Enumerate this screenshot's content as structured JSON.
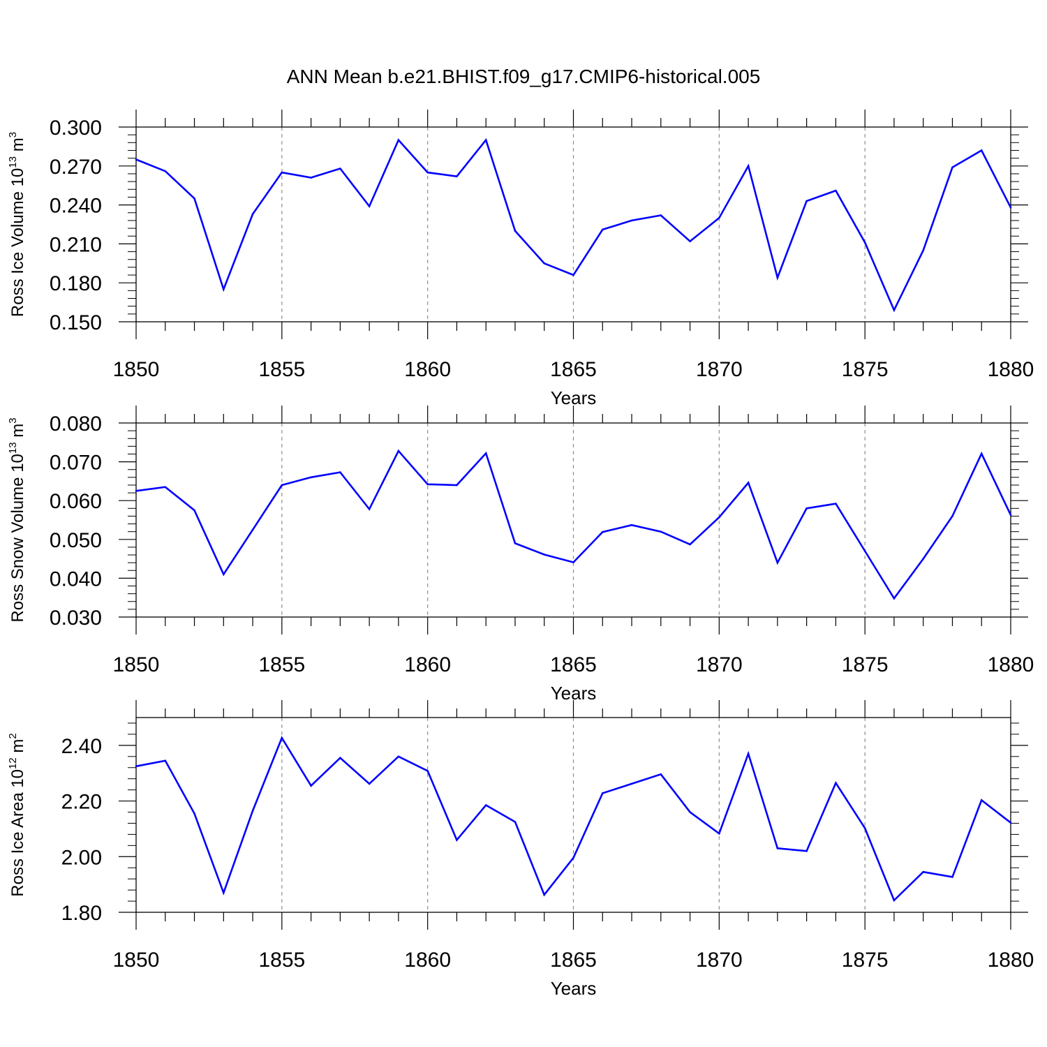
{
  "title": "ANN Mean b.e21.BHIST.f09_g17.CMIP6-historical.005",
  "colors": {
    "line": "#0000ff",
    "axis": "#000000",
    "grid": "#8c8c8c"
  },
  "chart_data": [
    {
      "type": "line",
      "ylabel": {
        "text": "Ross Ice Volume 10",
        "exp": "13",
        "unit": " m",
        "unit_exp": "3"
      },
      "xlabel": "Years",
      "xlim": [
        1850,
        1880
      ],
      "ylim": [
        0.15,
        0.3
      ],
      "yticks": [
        0.15,
        0.18,
        0.21,
        0.24,
        0.27,
        0.3
      ],
      "ytick_labels": [
        "0.150",
        "0.180",
        "0.210",
        "0.240",
        "0.270",
        "0.300"
      ],
      "xticks": [
        1850,
        1855,
        1860,
        1865,
        1870,
        1875,
        1880
      ],
      "xtick_labels": [
        "1850",
        "1855",
        "1860",
        "1865",
        "1870",
        "1875",
        "1880"
      ],
      "x": [
        1850,
        1851,
        1852,
        1853,
        1854,
        1855,
        1856,
        1857,
        1858,
        1859,
        1860,
        1861,
        1862,
        1863,
        1864,
        1865,
        1866,
        1867,
        1868,
        1869,
        1870,
        1871,
        1872,
        1873,
        1874,
        1875,
        1876,
        1877,
        1878,
        1879,
        1880
      ],
      "y": [
        0.275,
        0.266,
        0.245,
        0.175,
        0.233,
        0.265,
        0.261,
        0.268,
        0.239,
        0.29,
        0.265,
        0.262,
        0.29,
        0.22,
        0.195,
        0.186,
        0.221,
        0.228,
        0.232,
        0.212,
        0.23,
        0.27,
        0.184,
        0.243,
        0.251,
        0.211,
        0.159,
        0.205,
        0.269,
        0.282,
        0.238
      ]
    },
    {
      "type": "line",
      "ylabel": {
        "text": "Ross Snow Volume 10",
        "exp": "13",
        "unit": " m",
        "unit_exp": "3"
      },
      "xlabel": "Years",
      "xlim": [
        1850,
        1880
      ],
      "ylim": [
        0.03,
        0.08
      ],
      "yticks": [
        0.03,
        0.04,
        0.05,
        0.06,
        0.07,
        0.08
      ],
      "ytick_labels": [
        "0.030",
        "0.040",
        "0.050",
        "0.060",
        "0.070",
        "0.080"
      ],
      "xticks": [
        1850,
        1855,
        1860,
        1865,
        1870,
        1875,
        1880
      ],
      "xtick_labels": [
        "1850",
        "1855",
        "1860",
        "1865",
        "1870",
        "1875",
        "1880"
      ],
      "x": [
        1850,
        1851,
        1852,
        1853,
        1854,
        1855,
        1856,
        1857,
        1858,
        1859,
        1860,
        1861,
        1862,
        1863,
        1864,
        1865,
        1866,
        1867,
        1868,
        1869,
        1870,
        1871,
        1872,
        1873,
        1874,
        1875,
        1876,
        1877,
        1878,
        1879,
        1880
      ],
      "y": [
        0.0625,
        0.0635,
        0.0575,
        0.041,
        0.0525,
        0.064,
        0.066,
        0.0673,
        0.0578,
        0.0728,
        0.0642,
        0.064,
        0.0722,
        0.049,
        0.0461,
        0.0441,
        0.0519,
        0.0537,
        0.052,
        0.0487,
        0.0557,
        0.0646,
        0.044,
        0.058,
        0.0592,
        0.047,
        0.0348,
        0.045,
        0.056,
        0.0721,
        0.0563
      ]
    },
    {
      "type": "line",
      "ylabel": {
        "text": "Ross Ice Area 10",
        "exp": "12",
        "unit": " m",
        "unit_exp": "2"
      },
      "xlabel": "Years",
      "xlim": [
        1850,
        1880
      ],
      "ylim": [
        1.8,
        2.5
      ],
      "yticks": [
        1.8,
        2.0,
        2.2,
        2.4
      ],
      "ytick_labels": [
        "1.80",
        "2.00",
        "2.20",
        "2.40"
      ],
      "xticks": [
        1850,
        1855,
        1860,
        1865,
        1870,
        1875,
        1880
      ],
      "xtick_labels": [
        "1850",
        "1855",
        "1860",
        "1865",
        "1870",
        "1875",
        "1880"
      ],
      "x": [
        1850,
        1851,
        1852,
        1853,
        1854,
        1855,
        1856,
        1857,
        1858,
        1859,
        1860,
        1861,
        1862,
        1863,
        1864,
        1865,
        1866,
        1867,
        1868,
        1869,
        1870,
        1871,
        1872,
        1873,
        1874,
        1875,
        1876,
        1877,
        1878,
        1879,
        1880
      ],
      "y": [
        2.325,
        2.345,
        2.155,
        1.87,
        2.165,
        2.427,
        2.255,
        2.355,
        2.262,
        2.36,
        2.308,
        2.06,
        2.185,
        2.125,
        1.863,
        1.996,
        2.228,
        2.262,
        2.296,
        2.16,
        2.083,
        2.37,
        2.03,
        2.02,
        2.265,
        2.102,
        1.843,
        1.945,
        1.927,
        2.203,
        2.122
      ]
    }
  ]
}
